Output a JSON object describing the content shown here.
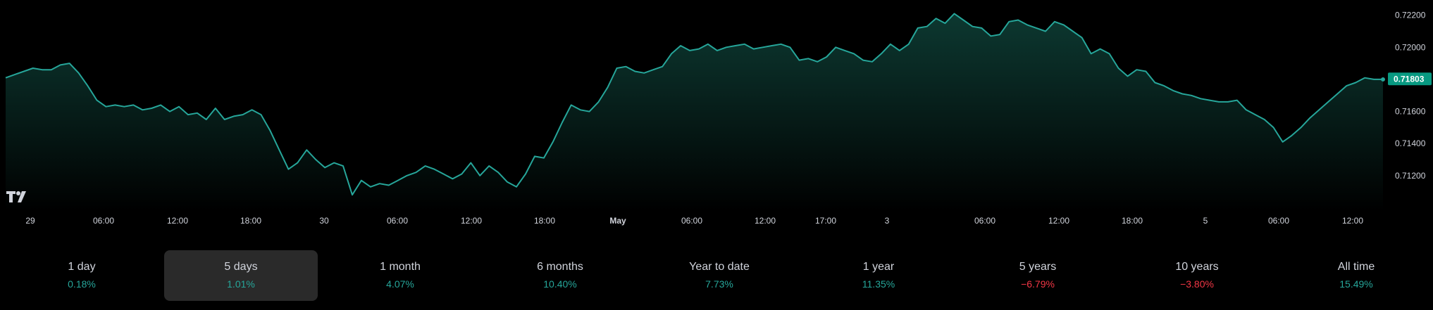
{
  "chart_data": {
    "type": "area",
    "series": [
      {
        "values": [
          0.7181,
          0.7183,
          0.7185,
          0.7187,
          0.7186,
          0.7186,
          0.7189,
          0.719,
          0.7184,
          0.7176,
          0.7167,
          0.7163,
          0.7164,
          0.7163,
          0.7164,
          0.7161,
          0.7162,
          0.7164,
          0.716,
          0.7163,
          0.7158,
          0.7159,
          0.7155,
          0.7162,
          0.7155,
          0.7157,
          0.7158,
          0.7161,
          0.7158,
          0.7148,
          0.7136,
          0.7124,
          0.7128,
          0.7136,
          0.713,
          0.7125,
          0.7128,
          0.7126,
          0.7108,
          0.7117,
          0.7113,
          0.7115,
          0.7114,
          0.7117,
          0.712,
          0.7122,
          0.7126,
          0.7124,
          0.7121,
          0.7118,
          0.7121,
          0.7128,
          0.712,
          0.7126,
          0.7122,
          0.7116,
          0.7113,
          0.7121,
          0.7132,
          0.7131,
          0.7141,
          0.7153,
          0.7164,
          0.7161,
          0.716,
          0.7166,
          0.7175,
          0.7187,
          0.7188,
          0.7185,
          0.7184,
          0.7186,
          0.7188,
          0.7196,
          0.7201,
          0.7198,
          0.7199,
          0.7202,
          0.7198,
          0.72,
          0.7201,
          0.7202,
          0.7199,
          0.72,
          0.7201,
          0.7202,
          0.72,
          0.7192,
          0.7193,
          0.7191,
          0.7194,
          0.72,
          0.7198,
          0.7196,
          0.7192,
          0.7191,
          0.7196,
          0.7202,
          0.7198,
          0.7202,
          0.7212,
          0.7213,
          0.7218,
          0.7215,
          0.7221,
          0.7217,
          0.7213,
          0.7212,
          0.7207,
          0.7208,
          0.7216,
          0.7217,
          0.7214,
          0.7212,
          0.721,
          0.7216,
          0.7214,
          0.721,
          0.7206,
          0.7196,
          0.7199,
          0.7196,
          0.7187,
          0.7182,
          0.7186,
          0.7185,
          0.7178,
          0.7176,
          0.7173,
          0.7171,
          0.717,
          0.7168,
          0.7167,
          0.7166,
          0.7166,
          0.7167,
          0.7161,
          0.7158,
          0.7155,
          0.715,
          0.7141,
          0.7145,
          0.715,
          0.7156,
          0.7161,
          0.7166,
          0.7171,
          0.7176,
          0.7178,
          0.7181,
          0.718,
          0.718
        ]
      }
    ],
    "x_tick_labels": [
      "29",
      "06:00",
      "12:00",
      "18:00",
      "30",
      "06:00",
      "12:00",
      "18:00",
      "May",
      "06:00",
      "12:00",
      "17:00",
      "3",
      "06:00",
      "12:00",
      "18:00",
      "5",
      "06:00",
      "12:00"
    ],
    "y_tick_labels": [
      "0.72200",
      "0.72000",
      "0.71600",
      "0.71400",
      "0.71200"
    ],
    "ylim": [
      0.7098,
      0.7226
    ],
    "current_value": "0.71803",
    "grid": false,
    "line_color": "#26a69a",
    "fill_color": "#0d3b33"
  },
  "periods": [
    {
      "label": "1 day",
      "change": "0.18%",
      "direction": "pos"
    },
    {
      "label": "5 days",
      "change": "1.01%",
      "direction": "pos"
    },
    {
      "label": "1 month",
      "change": "4.07%",
      "direction": "pos"
    },
    {
      "label": "6 months",
      "change": "10.40%",
      "direction": "pos"
    },
    {
      "label": "Year to date",
      "change": "7.73%",
      "direction": "pos"
    },
    {
      "label": "1 year",
      "change": "11.35%",
      "direction": "pos"
    },
    {
      "label": "5 years",
      "change": "−6.79%",
      "direction": "neg"
    },
    {
      "label": "10 years",
      "change": "−3.80%",
      "direction": "neg"
    },
    {
      "label": "All time",
      "change": "15.49%",
      "direction": "pos"
    }
  ],
  "selected_period_index": 1,
  "colors": {
    "positive": "#26a69a",
    "negative": "#f23645",
    "selected_bg": "#2a2a2a"
  }
}
